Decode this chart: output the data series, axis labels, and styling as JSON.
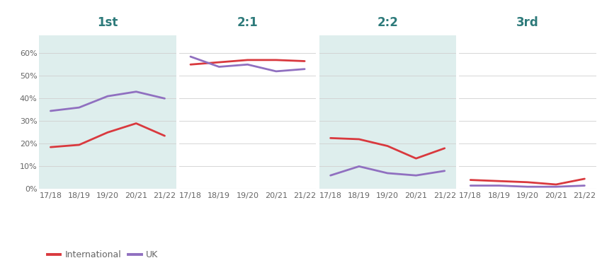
{
  "years": [
    "17/18",
    "18/19",
    "19/20",
    "20/21",
    "21/22"
  ],
  "sections": [
    "1st",
    "2:1",
    "2:2",
    "3rd"
  ],
  "international": {
    "1st": [
      18.5,
      19.5,
      25,
      29,
      23.5
    ],
    "2:1": [
      55,
      56,
      57,
      57,
      56.5
    ],
    "2:2": [
      22.5,
      22,
      19,
      13.5,
      18
    ],
    "3rd": [
      4,
      3.5,
      3,
      2,
      4.5
    ]
  },
  "uk": {
    "1st": [
      34.5,
      36,
      41,
      43,
      40
    ],
    "2:1": [
      58.5,
      54,
      55,
      52,
      53
    ],
    "2:2": [
      6,
      10,
      7,
      6,
      8
    ],
    "3rd": [
      1.5,
      1.5,
      1,
      1,
      1.5
    ]
  },
  "bg_color_shaded": "#deeeed",
  "bg_color_white": "#ffffff",
  "line_color_international": "#d9393e",
  "line_color_uk": "#9070c0",
  "title_color": "#2d7a7a",
  "axis_label_color": "#666666",
  "grid_color": "#d0d0d0",
  "ylim": [
    0,
    68
  ],
  "yticks": [
    0,
    10,
    20,
    30,
    40,
    50,
    60
  ],
  "ytick_labels": [
    "0%",
    "10%",
    "20%",
    "30%",
    "40%",
    "50%",
    "60%"
  ],
  "section_title_fontsize": 12,
  "tick_fontsize": 8,
  "legend_fontsize": 9,
  "line_width": 2.0
}
